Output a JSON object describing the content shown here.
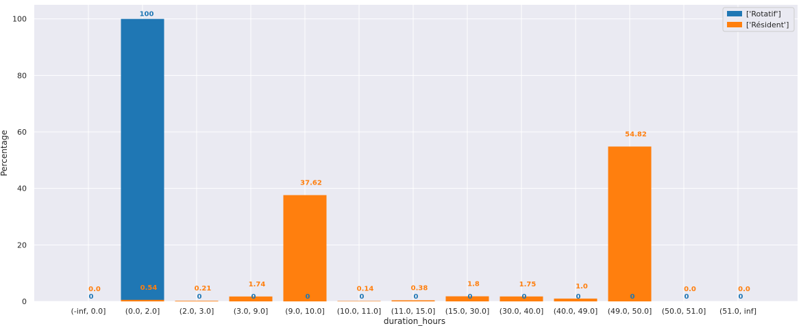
{
  "chart_data": {
    "type": "bar",
    "title": "",
    "xlabel": "duration_hours",
    "ylabel": "Percentage",
    "ylim": [
      0,
      105
    ],
    "yticks": [
      "0",
      "20",
      "40",
      "60",
      "80",
      "100"
    ],
    "grid": true,
    "legend_position": "top-right",
    "categories": [
      "(-inf, 0.0]",
      "(0.0, 2.0]",
      "(2.0, 3.0]",
      "(3.0, 9.0]",
      "(9.0, 10.0]",
      "(10.0, 11.0]",
      "(11.0, 15.0]",
      "(15.0, 30.0]",
      "(30.0, 40.0]",
      "(40.0, 49.0]",
      "(49.0, 50.0]",
      "(50.0, 51.0]",
      "(51.0, inf]"
    ],
    "series": [
      {
        "name": "['Rotatif']",
        "color": "#1f77b4",
        "values": [
          0,
          100,
          0,
          0,
          0,
          0,
          0,
          0,
          0,
          0,
          0,
          0,
          0
        ],
        "labels": [
          "0",
          "100",
          "0",
          "0",
          "0",
          "0",
          "0",
          "0",
          "0",
          "0",
          "0",
          "0",
          "0"
        ]
      },
      {
        "name": "['Résident']",
        "color": "#ff7f0e",
        "values": [
          0.0,
          0.54,
          0.21,
          1.74,
          37.62,
          0.14,
          0.38,
          1.8,
          1.75,
          1.0,
          54.82,
          0.0,
          0.0
        ],
        "labels": [
          "0.0",
          "0.54",
          "0.21",
          "1.74",
          "37.62",
          "0.14",
          "0.38",
          "1.8",
          "1.75",
          "1.0",
          "54.82",
          "0.0",
          "0.0"
        ]
      }
    ]
  }
}
